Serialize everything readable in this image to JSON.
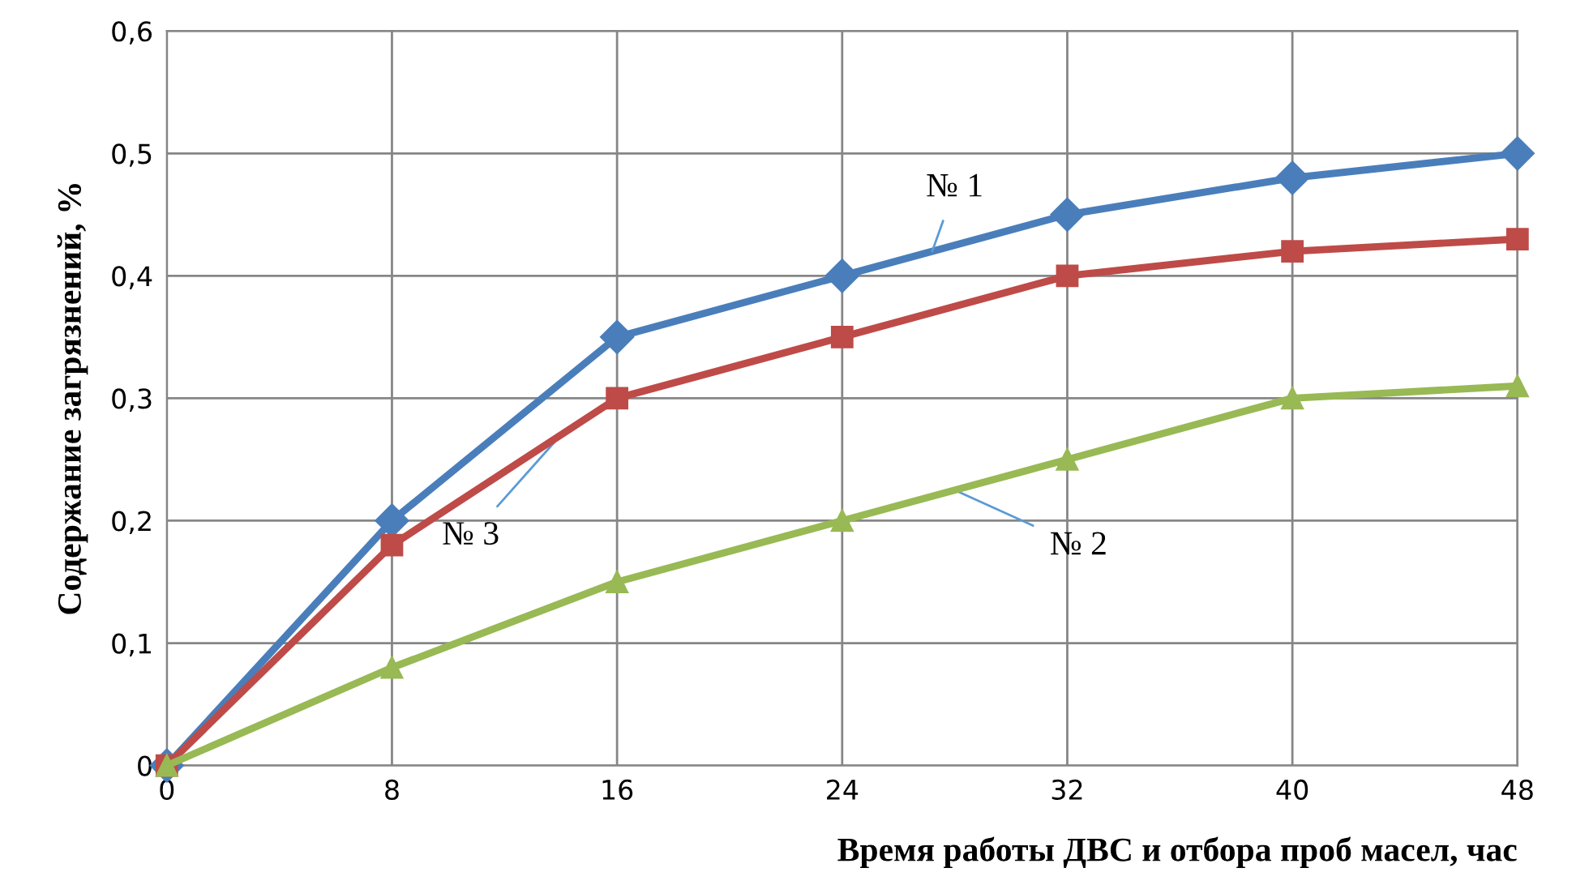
{
  "chart_data": {
    "type": "line",
    "xlabel": "Время работы ДВС и отбора проб масел, час",
    "ylabel": "Содержание загрязнений, %",
    "x": [
      0,
      8,
      16,
      24,
      32,
      40,
      48
    ],
    "series": [
      {
        "name": "№ 1",
        "color": "#4a7ebb",
        "marker": "diamond",
        "values": [
          0,
          0.2,
          0.35,
          0.4,
          0.45,
          0.48,
          0.5
        ]
      },
      {
        "name": "№ 3",
        "color": "#be4b48",
        "marker": "square",
        "values": [
          0,
          0.18,
          0.3,
          0.35,
          0.4,
          0.42,
          0.43
        ]
      },
      {
        "name": "№ 2",
        "color": "#98b954",
        "marker": "triangle",
        "values": [
          0,
          0.08,
          0.15,
          0.2,
          0.25,
          0.3,
          0.31
        ]
      }
    ],
    "xlim": [
      0,
      48
    ],
    "xticks": [
      0,
      8,
      16,
      24,
      32,
      40,
      48
    ],
    "ylim": [
      0,
      0.6
    ],
    "yticks": [
      {
        "value": 0,
        "label": "0"
      },
      {
        "value": 0.1,
        "label": "0,1"
      },
      {
        "value": 0.2,
        "label": "0,2"
      },
      {
        "value": 0.3,
        "label": "0,3"
      },
      {
        "value": 0.4,
        "label": "0,4"
      },
      {
        "value": 0.5,
        "label": "0,5"
      },
      {
        "value": 0.6,
        "label": "0,6"
      }
    ],
    "grid": true,
    "legend": false,
    "line_style": "solid"
  }
}
